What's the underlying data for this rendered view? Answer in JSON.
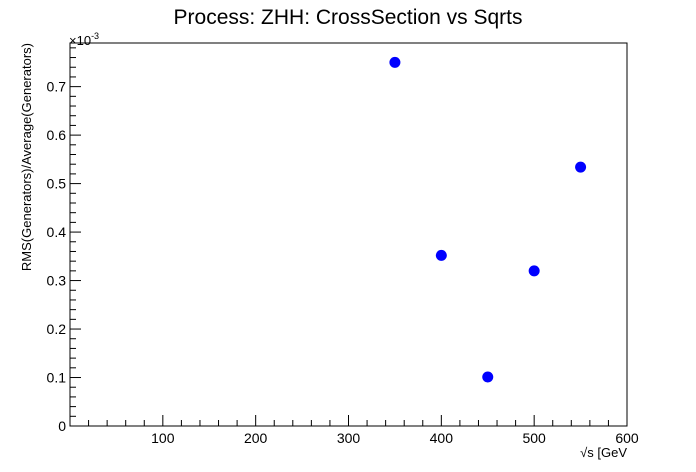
{
  "chart_data": {
    "type": "scatter",
    "title": "Process: ZHH: CrossSection vs Sqrts",
    "xlabel": "√s [GeV",
    "ylabel": "RMS(Generators)/Average(Generators)",
    "y_multiplier_label": "×10",
    "y_multiplier_exponent": "-3",
    "xlim": [
      0,
      600
    ],
    "ylim": [
      0,
      0.79
    ],
    "x_ticks": [
      100,
      200,
      300,
      400,
      500,
      600
    ],
    "x_tick_labels": [
      "100",
      "200",
      "300",
      "400",
      "500",
      "600"
    ],
    "y_ticks": [
      0,
      0.1,
      0.2,
      0.3,
      0.4,
      0.5,
      0.6,
      0.7
    ],
    "y_tick_labels": [
      "0",
      "0.1",
      "0.2",
      "0.3",
      "0.4",
      "0.5",
      "0.6",
      "0.7"
    ],
    "grid": false,
    "marker_color": "#0000ff",
    "points": [
      {
        "x": 350,
        "y": 0.75
      },
      {
        "x": 400,
        "y": 0.352
      },
      {
        "x": 450,
        "y": 0.101
      },
      {
        "x": 500,
        "y": 0.32
      },
      {
        "x": 550,
        "y": 0.534
      }
    ]
  }
}
